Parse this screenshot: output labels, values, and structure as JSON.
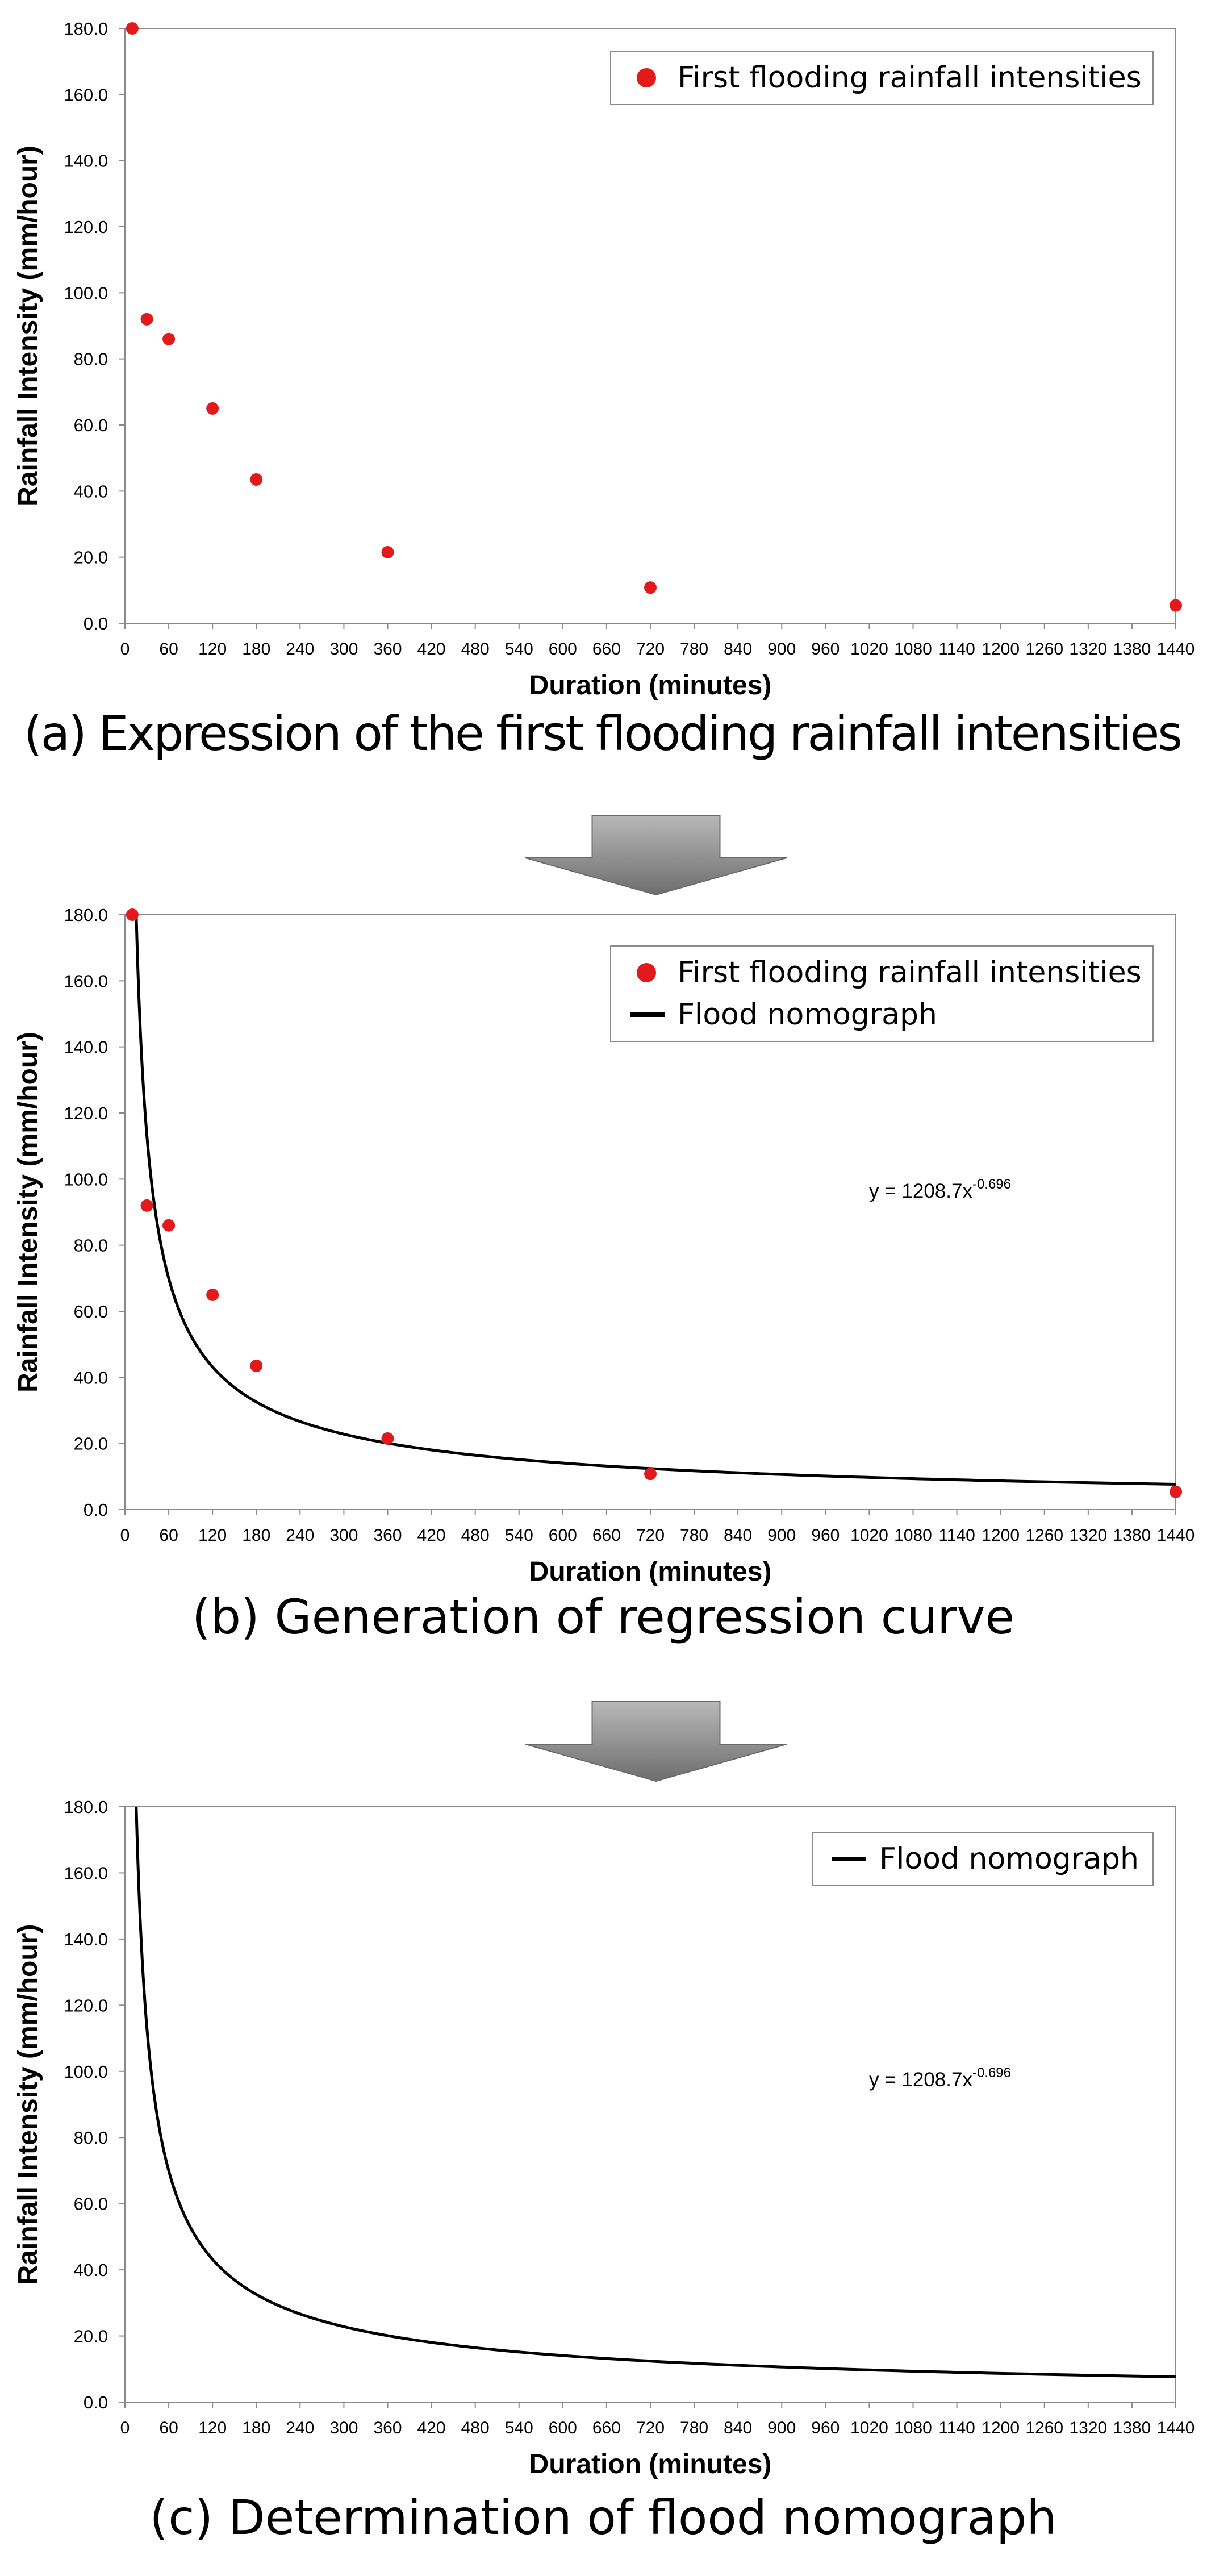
{
  "chart_data": [
    {
      "type": "scatter",
      "caption": "(a) Expression of the first flooding rainfall intensities",
      "xlabel": "Duration (minutes)",
      "ylabel": "Rainfall Intensity (mm/hour)",
      "xlim": [
        0,
        1440
      ],
      "ylim": [
        0,
        180
      ],
      "x_ticks": [
        "0",
        "60",
        "120",
        "180",
        "240",
        "300",
        "360",
        "420",
        "480",
        "540",
        "600",
        "660",
        "720",
        "780",
        "840",
        "900",
        "960",
        "1020",
        "1080",
        "1140",
        "1200",
        "1260",
        "1320",
        "1380",
        "1440"
      ],
      "y_ticks": [
        "0.0",
        "20.0",
        "40.0",
        "60.0",
        "80.0",
        "100.0",
        "120.0",
        "140.0",
        "160.0",
        "180.0"
      ],
      "grid": false,
      "legend_position": "top-right",
      "series": [
        {
          "name": "First flooding rainfall intensities",
          "kind": "points",
          "color": "#e31a1c",
          "x": [
            10,
            30,
            60,
            120,
            180,
            360,
            720,
            1440
          ],
          "y": [
            180.0,
            92.0,
            86.0,
            65.0,
            43.5,
            21.5,
            10.8,
            5.4
          ]
        }
      ]
    },
    {
      "type": "scatter",
      "caption": "(b) Generation of regression curve",
      "xlabel": "Duration (minutes)",
      "ylabel": "Rainfall Intensity (mm/hour)",
      "xlim": [
        0,
        1440
      ],
      "ylim": [
        0,
        180
      ],
      "x_ticks": [
        "0",
        "60",
        "120",
        "180",
        "240",
        "300",
        "360",
        "420",
        "480",
        "540",
        "600",
        "660",
        "720",
        "780",
        "840",
        "900",
        "960",
        "1020",
        "1080",
        "1140",
        "1200",
        "1260",
        "1320",
        "1380",
        "1440"
      ],
      "y_ticks": [
        "0.0",
        "20.0",
        "40.0",
        "60.0",
        "80.0",
        "100.0",
        "120.0",
        "140.0",
        "160.0",
        "180.0"
      ],
      "grid": false,
      "legend_position": "top-right",
      "annotation": {
        "base": "y = 1208.7x",
        "exponent": "-0.696",
        "position": "center-right"
      },
      "series": [
        {
          "name": "First flooding rainfall intensities",
          "kind": "points",
          "color": "#e31a1c",
          "x": [
            10,
            30,
            60,
            120,
            180,
            360,
            720,
            1440
          ],
          "y": [
            180.0,
            92.0,
            86.0,
            65.0,
            43.5,
            21.5,
            10.8,
            5.4
          ]
        },
        {
          "name": "Flood nomograph",
          "kind": "power-curve",
          "color": "#000000",
          "a": 1208.7,
          "b": -0.696
        }
      ]
    },
    {
      "type": "line",
      "caption": "(c) Determination of flood nomograph",
      "xlabel": "Duration (minutes)",
      "ylabel": "Rainfall Intensity (mm/hour)",
      "xlim": [
        0,
        1440
      ],
      "ylim": [
        0,
        180
      ],
      "x_ticks": [
        "0",
        "60",
        "120",
        "180",
        "240",
        "300",
        "360",
        "420",
        "480",
        "540",
        "600",
        "660",
        "720",
        "780",
        "840",
        "900",
        "960",
        "1020",
        "1080",
        "1140",
        "1200",
        "1260",
        "1320",
        "1380",
        "1440"
      ],
      "y_ticks": [
        "0.0",
        "20.0",
        "40.0",
        "60.0",
        "80.0",
        "100.0",
        "120.0",
        "140.0",
        "160.0",
        "180.0"
      ],
      "grid": false,
      "legend_position": "top-right",
      "annotation": {
        "base": "y = 1208.7x",
        "exponent": "-0.696",
        "position": "center-right"
      },
      "series": [
        {
          "name": "Flood nomograph",
          "kind": "power-curve",
          "color": "#000000",
          "a": 1208.7,
          "b": -0.696
        }
      ]
    }
  ],
  "arrows": [
    {
      "icon": "down-arrow-icon",
      "color": "#8c8c8c"
    },
    {
      "icon": "down-arrow-icon",
      "color": "#8c8c8c"
    }
  ]
}
